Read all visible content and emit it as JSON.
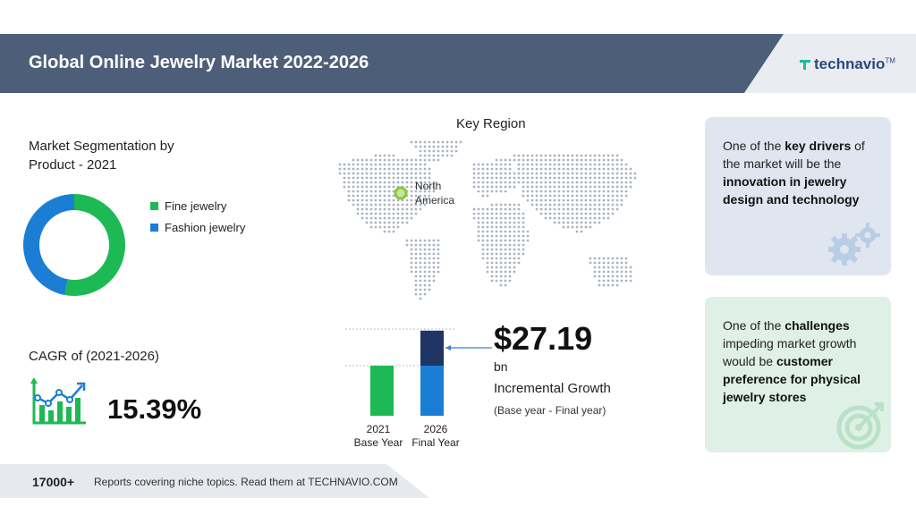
{
  "header": {
    "title": "Global Online Jewelry Market 2022-2026",
    "brand": "technavio",
    "brand_mark": "TM"
  },
  "segmentation": {
    "title_line1": "Market Segmentation by",
    "title_line2": "Product - 2021",
    "legend": [
      {
        "label": "Fine jewelry",
        "color": "#1db954"
      },
      {
        "label": "Fashion jewelry",
        "color": "#1a7fd4"
      }
    ]
  },
  "cagr": {
    "label": "CAGR of (2021-2026)",
    "value": "15.39%"
  },
  "key_region": {
    "title": "Key Region",
    "region_line1": "North",
    "region_line2": "America"
  },
  "growth": {
    "value": "$27.19",
    "unit": "bn",
    "label": "Incremental Growth",
    "note": "(Base year - Final year)"
  },
  "drivers_card": {
    "prefix": "One of the ",
    "highlight1": "key drivers",
    "middle": " of the market will be the ",
    "highlight2": "innovation in jewelry design and technology"
  },
  "challenges_card": {
    "prefix": "One of the ",
    "highlight1": "challenges",
    "middle": " impeding market growth would be ",
    "highlight2": "customer preference for physical jewelry stores"
  },
  "footer": {
    "count": "17000+",
    "text": "Reports covering niche topics. Read them at TECHNAVIO.COM"
  },
  "chart_data": [
    {
      "type": "pie",
      "title": "Market Segmentation by Product - 2021",
      "categories": [
        "Fine jewelry",
        "Fashion jewelry"
      ],
      "values": [
        53,
        47
      ],
      "colors": [
        "#1db954",
        "#1a7fd4"
      ]
    },
    {
      "type": "bar",
      "categories": [
        "2021",
        "2026"
      ],
      "category_labels": [
        "Base Year",
        "Final Year"
      ],
      "series": [
        {
          "name": "Base",
          "values": [
            1.0,
            1.0
          ],
          "color": "#1db954"
        },
        {
          "name": "Incremental",
          "values": [
            0,
            0.7
          ],
          "color": "#1f3563"
        }
      ],
      "bar_colors": [
        "#1db954",
        "#1a7fd4"
      ],
      "incremental_color": "#1f3563"
    }
  ]
}
